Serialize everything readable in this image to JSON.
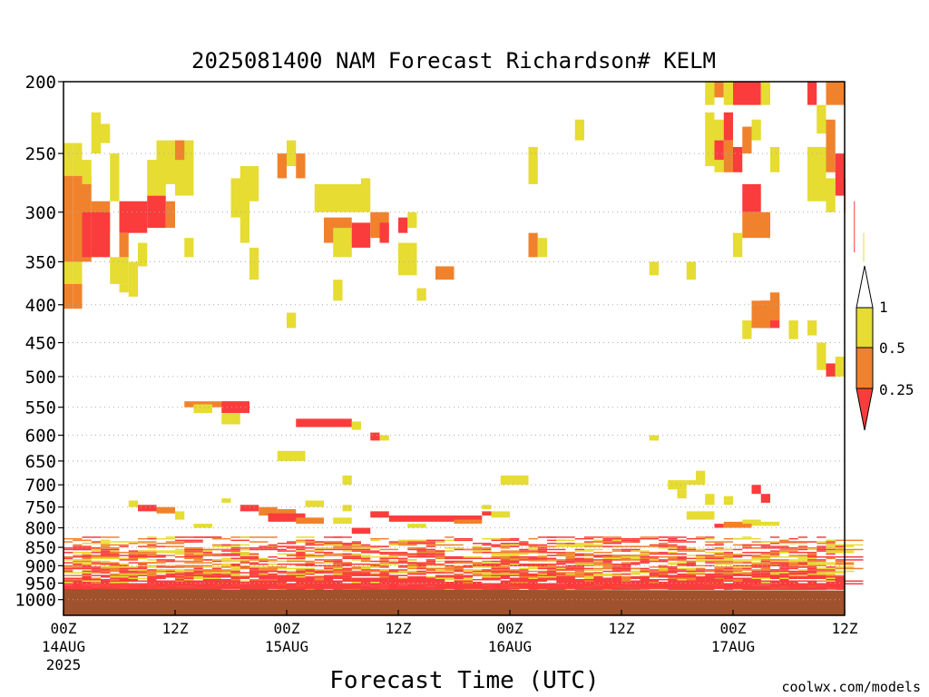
{
  "chart_data": {
    "type": "heatmap",
    "title": "2025081400 NAM Forecast Richardson# KELM",
    "xlabel": "Forecast Time (UTC)",
    "ylabel": "",
    "y_scale": "pressure (log)",
    "ylim": [
      1050,
      200
    ],
    "y_ticks": [
      200,
      250,
      300,
      350,
      400,
      450,
      500,
      550,
      600,
      650,
      700,
      750,
      800,
      850,
      900,
      950,
      1000
    ],
    "xlim": [
      0,
      84
    ],
    "x_ticks": [
      {
        "hour": 0,
        "line1": "00Z",
        "line2": "14AUG",
        "line3": "2025"
      },
      {
        "hour": 12,
        "line1": "12Z",
        "line2": "",
        "line3": ""
      },
      {
        "hour": 24,
        "line1": "00Z",
        "line2": "15AUG",
        "line3": ""
      },
      {
        "hour": 36,
        "line1": "12Z",
        "line2": "",
        "line3": ""
      },
      {
        "hour": 48,
        "line1": "00Z",
        "line2": "16AUG",
        "line3": ""
      },
      {
        "hour": 60,
        "line1": "12Z",
        "line2": "",
        "line3": ""
      },
      {
        "hour": 72,
        "line1": "00Z",
        "line2": "17AUG",
        "line3": ""
      },
      {
        "hour": 84,
        "line1": "12Z",
        "line2": "",
        "line3": ""
      }
    ],
    "grid": "horizontal dotted at y ticks",
    "legend": {
      "placement": "right",
      "labels": [
        "1",
        "0.5",
        "0.25"
      ],
      "levels": [
        {
          "range": "0.5 - 1",
          "color": "#e6dc32"
        },
        {
          "range": "0.25 - 0.5",
          "color": "#f0822d"
        },
        {
          "range": "< 0.25",
          "color": "#fa3c3c"
        }
      ]
    },
    "colors": {
      "yellow": "#e6dc32",
      "orange": "#f0822d",
      "red": "#fa3c3c",
      "ground": "#a0522d"
    },
    "ground": {
      "top_hpa_start": 968,
      "top_hpa_end": 972
    },
    "cells": [
      [
        0,
        1,
        242,
        268,
        "y"
      ],
      [
        0,
        1,
        268,
        350,
        "o"
      ],
      [
        0,
        1,
        350,
        375,
        "y"
      ],
      [
        0,
        1,
        375,
        405,
        "o"
      ],
      [
        1,
        2,
        242,
        268,
        "y"
      ],
      [
        1,
        2,
        268,
        350,
        "o"
      ],
      [
        1,
        2,
        350,
        375,
        "y"
      ],
      [
        1,
        2,
        375,
        405,
        "o"
      ],
      [
        2,
        3,
        268,
        350,
        "o"
      ],
      [
        2,
        3,
        300,
        345,
        "r"
      ],
      [
        2,
        3,
        255,
        275,
        "y"
      ],
      [
        3,
        4,
        290,
        320,
        "o"
      ],
      [
        3,
        4,
        300,
        345,
        "r"
      ],
      [
        3,
        4,
        220,
        250,
        "y"
      ],
      [
        4,
        5,
        228,
        242,
        "y"
      ],
      [
        4,
        5,
        290,
        320,
        "o"
      ],
      [
        4,
        5,
        300,
        345,
        "r"
      ],
      [
        5,
        6,
        250,
        290,
        "y"
      ],
      [
        5,
        7,
        345,
        375,
        "y"
      ],
      [
        6,
        7,
        375,
        385,
        "y"
      ],
      [
        6,
        9,
        290,
        320,
        "r"
      ],
      [
        6,
        7,
        320,
        345,
        "o"
      ],
      [
        7,
        8,
        350,
        385,
        "y"
      ],
      [
        8,
        9,
        330,
        355,
        "y"
      ],
      [
        7,
        8,
        375,
        390,
        "y"
      ],
      [
        9,
        11,
        285,
        315,
        "r"
      ],
      [
        9,
        11,
        255,
        285,
        "y"
      ],
      [
        10,
        12,
        240,
        275,
        "y"
      ],
      [
        11,
        12,
        290,
        315,
        "o"
      ],
      [
        12,
        14,
        240,
        285,
        "y"
      ],
      [
        12,
        13,
        240,
        255,
        "o"
      ],
      [
        13,
        14,
        325,
        345,
        "y"
      ],
      [
        18,
        20,
        270,
        305,
        "y"
      ],
      [
        19,
        21,
        260,
        290,
        "y"
      ],
      [
        19,
        20,
        300,
        330,
        "y"
      ],
      [
        23,
        24,
        250,
        270,
        "o"
      ],
      [
        24,
        25,
        240,
        260,
        "y"
      ],
      [
        25,
        26,
        250,
        270,
        "o"
      ],
      [
        27,
        32,
        275,
        300,
        "y"
      ],
      [
        28,
        31,
        305,
        330,
        "o"
      ],
      [
        29,
        31,
        315,
        345,
        "y"
      ],
      [
        31,
        33,
        310,
        335,
        "r"
      ],
      [
        33,
        35,
        300,
        325,
        "o"
      ],
      [
        34,
        35,
        310,
        330,
        "r"
      ],
      [
        32,
        33,
        270,
        300,
        "y"
      ],
      [
        36,
        37,
        305,
        320,
        "r"
      ],
      [
        37,
        38,
        300,
        315,
        "y"
      ],
      [
        40,
        42,
        355,
        370,
        "o"
      ],
      [
        38,
        39,
        380,
        395,
        "y"
      ],
      [
        20,
        21,
        335,
        370,
        "y"
      ],
      [
        29,
        30,
        370,
        395,
        "y"
      ],
      [
        36,
        38,
        330,
        365,
        "y"
      ],
      [
        24,
        25,
        410,
        430,
        "y"
      ],
      [
        50,
        51,
        245,
        275,
        "y"
      ],
      [
        50,
        51,
        320,
        345,
        "o"
      ],
      [
        51,
        52,
        325,
        345,
        "y"
      ],
      [
        55,
        56,
        225,
        240,
        "y"
      ],
      [
        63,
        64,
        350,
        365,
        "y"
      ],
      [
        67,
        68,
        350,
        370,
        "y"
      ],
      [
        69,
        70,
        200,
        215,
        "y"
      ],
      [
        70,
        71,
        200,
        210,
        "o"
      ],
      [
        71,
        72,
        200,
        215,
        "y"
      ],
      [
        72,
        75,
        200,
        215,
        "r"
      ],
      [
        75,
        76,
        200,
        215,
        "y"
      ],
      [
        80,
        81,
        200,
        215,
        "r"
      ],
      [
        82,
        84,
        200,
        215,
        "o"
      ],
      [
        69,
        70,
        220,
        260,
        "y"
      ],
      [
        70,
        71,
        225,
        265,
        "y"
      ],
      [
        71,
        72,
        220,
        240,
        "r"
      ],
      [
        71,
        72,
        240,
        265,
        "o"
      ],
      [
        72,
        73,
        245,
        265,
        "r"
      ],
      [
        73,
        74,
        230,
        250,
        "o"
      ],
      [
        74,
        75,
        225,
        240,
        "y"
      ],
      [
        70,
        71,
        240,
        255,
        "r"
      ],
      [
        76,
        77,
        245,
        265,
        "y"
      ],
      [
        81,
        82,
        215,
        235,
        "y"
      ],
      [
        82,
        83,
        225,
        265,
        "o"
      ],
      [
        83,
        84,
        250,
        285,
        "r"
      ],
      [
        84,
        85,
        270,
        300,
        "o"
      ],
      [
        85,
        86,
        290,
        340,
        "r"
      ],
      [
        80,
        82,
        245,
        290,
        "y"
      ],
      [
        82,
        83,
        270,
        300,
        "y"
      ],
      [
        86,
        87,
        320,
        350,
        "y"
      ],
      [
        73,
        75,
        275,
        300,
        "r"
      ],
      [
        73,
        76,
        300,
        325,
        "o"
      ],
      [
        72,
        73,
        320,
        345,
        "y"
      ],
      [
        75,
        77,
        395,
        430,
        "r"
      ],
      [
        74,
        76,
        395,
        430,
        "o"
      ],
      [
        76,
        77,
        385,
        420,
        "o"
      ],
      [
        73,
        74,
        420,
        445,
        "y"
      ],
      [
        78,
        79,
        420,
        445,
        "y"
      ],
      [
        80,
        81,
        420,
        440,
        "y"
      ],
      [
        81,
        82,
        450,
        490,
        "y"
      ],
      [
        82,
        83,
        480,
        500,
        "r"
      ],
      [
        83,
        84,
        470,
        500,
        "y"
      ],
      [
        13,
        20,
        540,
        550,
        "o"
      ],
      [
        14,
        16,
        545,
        560,
        "y"
      ],
      [
        17,
        20,
        540,
        560,
        "r"
      ],
      [
        17,
        19,
        560,
        580,
        "y"
      ],
      [
        25,
        31,
        570,
        585,
        "r"
      ],
      [
        31,
        32,
        575,
        590,
        "y"
      ],
      [
        33,
        34,
        595,
        610,
        "r"
      ],
      [
        34,
        35,
        600,
        610,
        "y"
      ],
      [
        23,
        26,
        630,
        650,
        "y"
      ],
      [
        30,
        31,
        680,
        700,
        "y"
      ],
      [
        47,
        50,
        680,
        700,
        "y"
      ],
      [
        63,
        64,
        600,
        610,
        "y"
      ],
      [
        65,
        67,
        690,
        710,
        "y"
      ],
      [
        66,
        67,
        710,
        730,
        "y"
      ],
      [
        67,
        68,
        690,
        700,
        "y"
      ],
      [
        68,
        69,
        670,
        700,
        "y"
      ],
      [
        69,
        70,
        720,
        745,
        "y"
      ],
      [
        71,
        72,
        725,
        745,
        "y"
      ],
      [
        74,
        75,
        700,
        720,
        "r"
      ],
      [
        75,
        76,
        720,
        740,
        "r"
      ],
      [
        7,
        8,
        735,
        750,
        "y"
      ],
      [
        8,
        10,
        745,
        760,
        "r"
      ],
      [
        10,
        12,
        750,
        765,
        "o"
      ],
      [
        12,
        13,
        760,
        780,
        "y"
      ],
      [
        14,
        16,
        790,
        800,
        "y"
      ],
      [
        17,
        18,
        730,
        740,
        "y"
      ],
      [
        19,
        21,
        745,
        760,
        "r"
      ],
      [
        21,
        23,
        750,
        770,
        "o"
      ],
      [
        23,
        25,
        755,
        770,
        "o"
      ],
      [
        22,
        26,
        765,
        785,
        "r"
      ],
      [
        25,
        28,
        775,
        790,
        "o"
      ],
      [
        26,
        28,
        735,
        750,
        "y"
      ],
      [
        29,
        31,
        775,
        790,
        "y"
      ],
      [
        30,
        31,
        745,
        760,
        "y"
      ],
      [
        33,
        35,
        760,
        775,
        "r"
      ],
      [
        35,
        45,
        770,
        785,
        "r"
      ],
      [
        45,
        46,
        760,
        770,
        "r"
      ],
      [
        45,
        46,
        745,
        755,
        "y"
      ],
      [
        46,
        48,
        760,
        775,
        "y"
      ],
      [
        42,
        45,
        780,
        790,
        "o"
      ],
      [
        37,
        39,
        790,
        800,
        "y"
      ],
      [
        31,
        33,
        800,
        815,
        "r"
      ],
      [
        67,
        70,
        760,
        780,
        "y"
      ],
      [
        70,
        71,
        790,
        800,
        "r"
      ],
      [
        71,
        74,
        785,
        800,
        "o"
      ],
      [
        73,
        75,
        780,
        790,
        "y"
      ],
      [
        74,
        77,
        785,
        795,
        "y"
      ]
    ],
    "low_bands": [
      {
        "top_hpa": 820,
        "bottom_hpa": 860,
        "colors": "mixed y/o/r"
      },
      {
        "top_hpa": 860,
        "bottom_hpa": 920,
        "colors": "mixed y/o/r"
      },
      {
        "top_hpa": 920,
        "bottom_hpa": 968,
        "colors": "mostly r"
      }
    ]
  },
  "watermark": "coolwx.com/models",
  "colors": {
    "watermark": "#cc3333",
    "gridline": "#aaaaaa"
  }
}
